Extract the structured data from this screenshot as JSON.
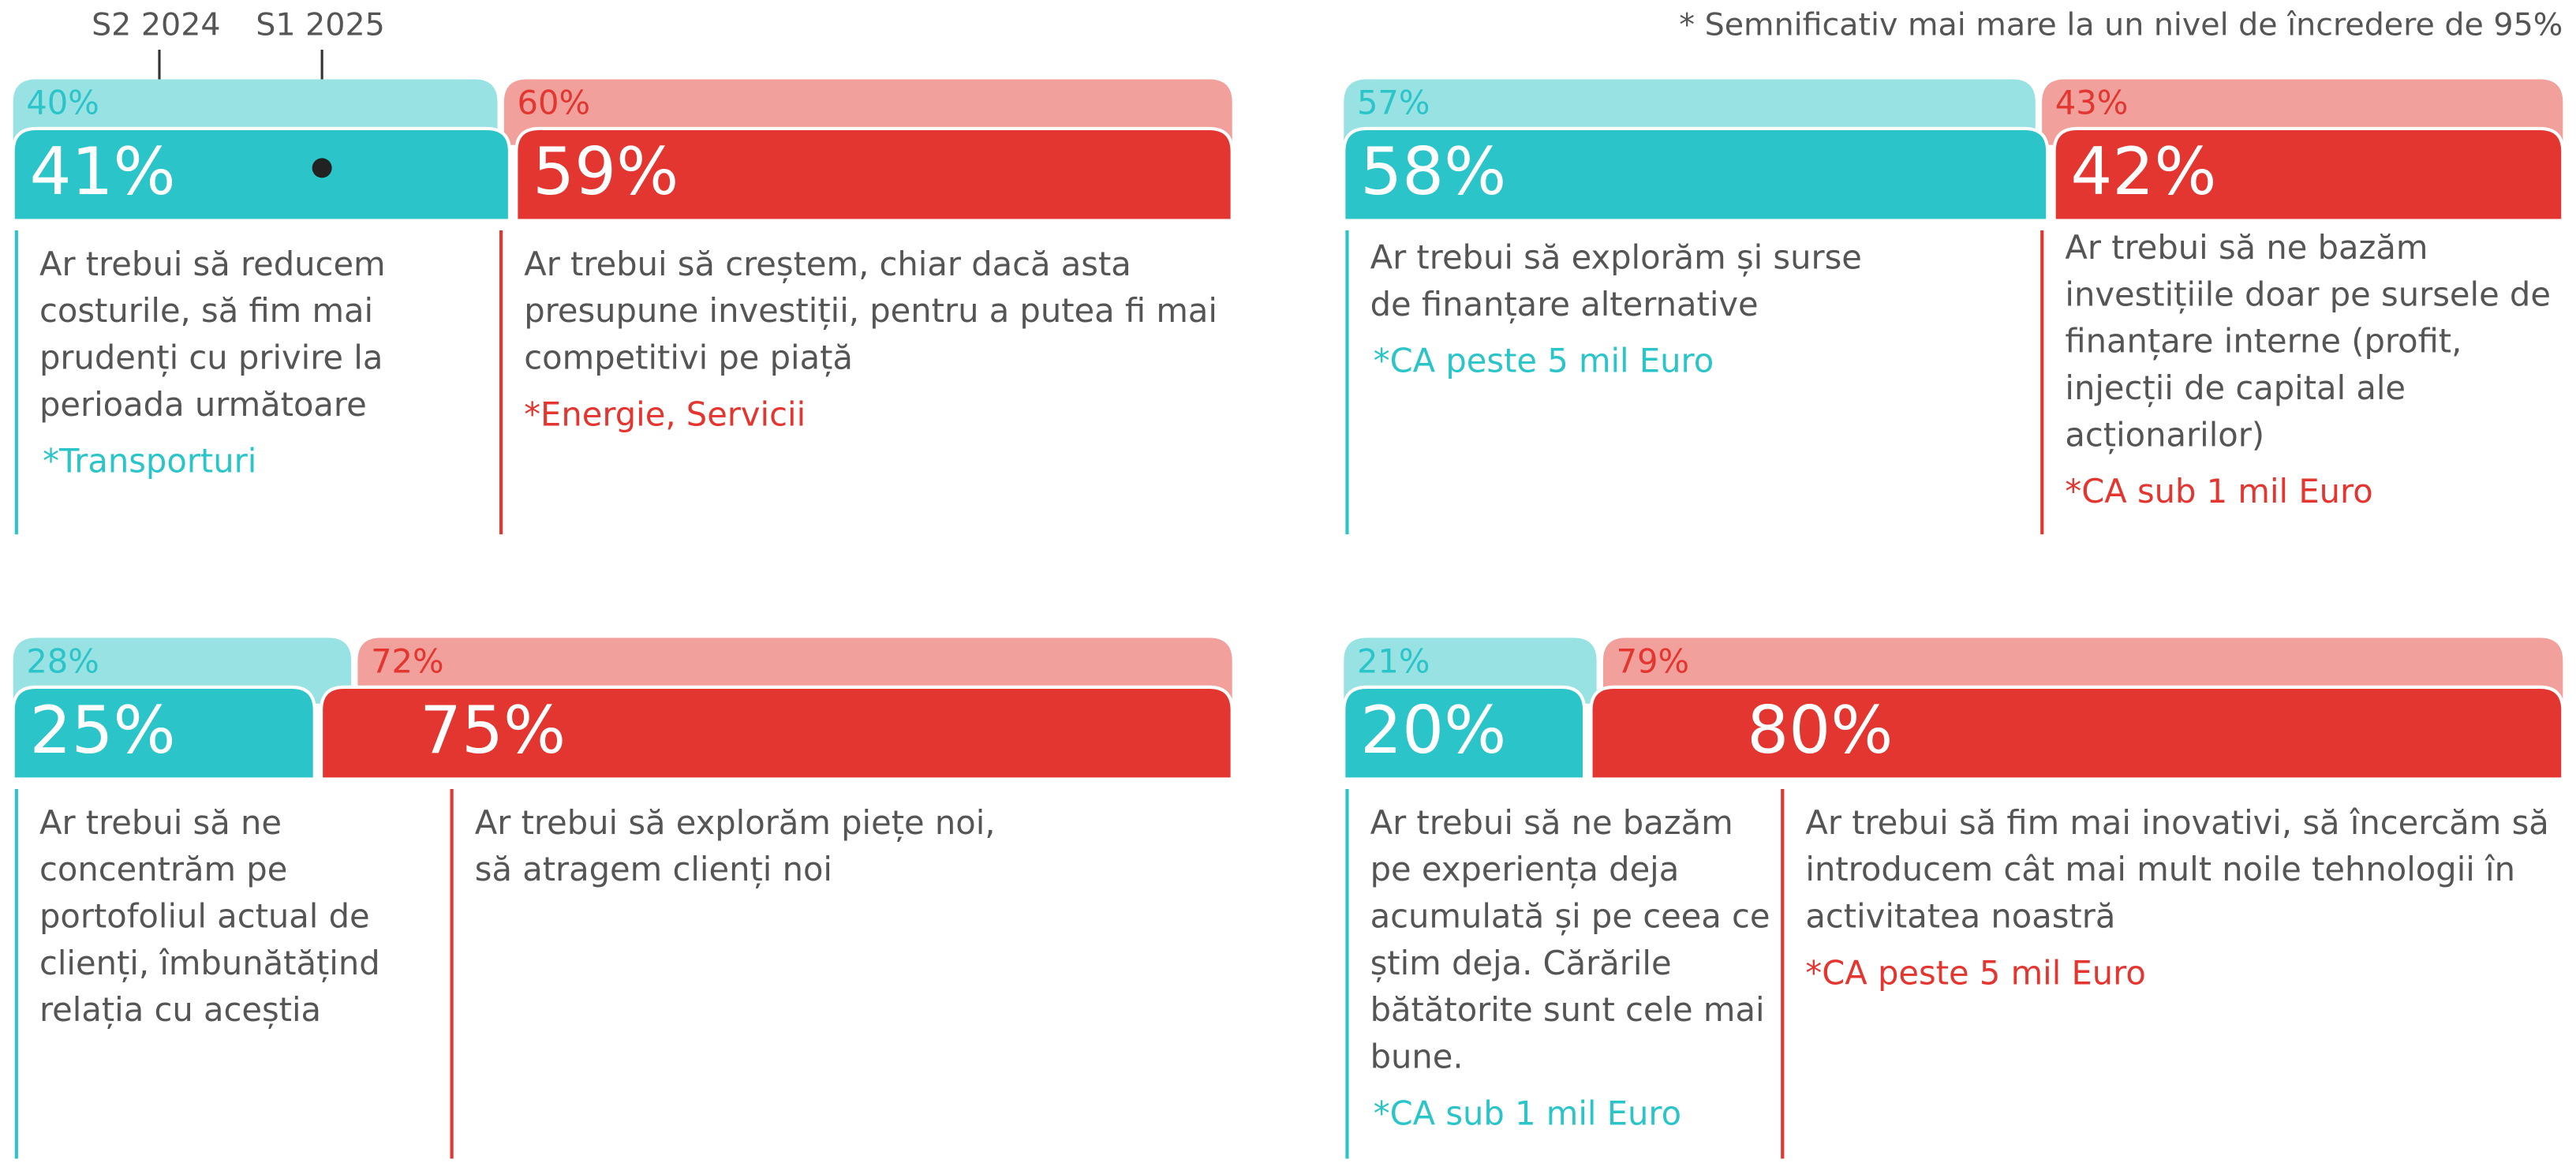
{
  "legend": [
    "S2 2024",
    "S1 2025"
  ],
  "footnote": "*  Semnificativ mai mare la un nivel de încredere de 95%",
  "colors": {
    "previous": [
      "#98e2e4",
      "#f2a09c"
    ],
    "current": [
      "#2bc4c9",
      "#e33630"
    ],
    "text": "#555555"
  },
  "chart_data": [
    {
      "type": "split-bar",
      "previous": {
        "values": [
          40,
          60
        ],
        "value_labels": [
          "40%",
          "60%"
        ]
      },
      "current": {
        "values": [
          41,
          59
        ],
        "value_labels": [
          "41%",
          "59%"
        ]
      },
      "options": [
        {
          "lines": [
            "Ar trebui să reducem",
            "costurile, să fim mai",
            "prudenți cu privire la",
            "perioada următoare"
          ],
          "note": "*Transporturi"
        },
        {
          "lines": [
            "Ar trebui să creștem, chiar dacă asta",
            "presupune investiții, pentru a putea fi mai",
            "competitivi pe piață"
          ],
          "note": "*Energie, Servicii"
        }
      ]
    },
    {
      "type": "split-bar",
      "previous": {
        "values": [
          57,
          43
        ],
        "value_labels": [
          "57%",
          "43%"
        ]
      },
      "current": {
        "values": [
          58,
          42
        ],
        "value_labels": [
          "58%",
          "42%"
        ]
      },
      "options": [
        {
          "lines": [
            "Ar trebui să explorăm și surse",
            "de finanțare alternative"
          ],
          "note": "*CA peste 5 mil Euro"
        },
        {
          "lines": [
            "Ar trebui să ne bazăm",
            "investițiile doar pe sursele de",
            "finanțare interne (profit,",
            "injecții de capital ale",
            "acționarilor)"
          ],
          "note": "*CA sub 1 mil Euro"
        }
      ]
    },
    {
      "type": "split-bar",
      "previous": {
        "values": [
          28,
          72
        ],
        "value_labels": [
          "28%",
          "72%"
        ]
      },
      "current": {
        "values": [
          25,
          75
        ],
        "value_labels": [
          "25%",
          "75%"
        ]
      },
      "options": [
        {
          "lines": [
            "Ar trebui să ne",
            "concentrăm pe",
            "portofoliul actual de",
            "clienți, îmbunătățind",
            "relația cu aceștia"
          ]
        },
        {
          "lines": [
            "Ar trebui să explorăm piețe noi,",
            "să atragem clienți noi"
          ]
        }
      ]
    },
    {
      "type": "split-bar",
      "previous": {
        "values": [
          21,
          79
        ],
        "value_labels": [
          "21%",
          "79%"
        ]
      },
      "current": {
        "values": [
          20,
          80
        ],
        "value_labels": [
          "20%",
          "80%"
        ]
      },
      "options": [
        {
          "lines": [
            "Ar trebui să ne bazăm",
            "pe experiența deja",
            "acumulată și pe ceea ce",
            "știm deja. Cărările",
            "bătătorite sunt cele mai",
            "bune."
          ],
          "note": "*CA sub 1 mil Euro"
        },
        {
          "lines": [
            "Ar trebui să fim mai inovativi, să încercăm să",
            "introducem cât mai mult noile tehnologii în",
            "activitatea noastră"
          ],
          "note": "*CA peste 5 mil Euro"
        }
      ]
    }
  ]
}
